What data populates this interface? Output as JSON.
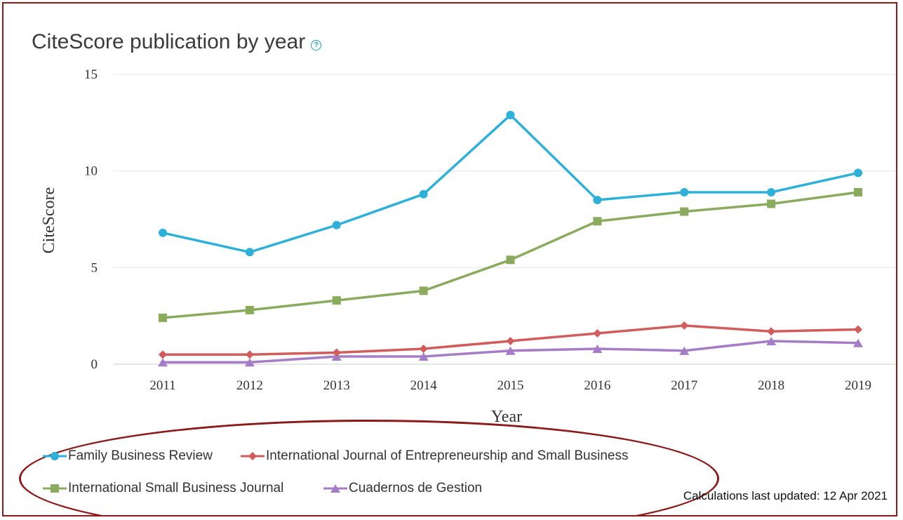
{
  "header": {
    "title": "CiteScore publication by year",
    "help_icon": "question-circle-icon"
  },
  "footer": {
    "updated": "Calculations last updated: 12 Apr 2021"
  },
  "chart_data": {
    "type": "line",
    "xlabel": "Year",
    "ylabel": "CiteScore",
    "ylim": [
      0,
      15
    ],
    "yticks": [
      "0",
      "5",
      "10",
      "15"
    ],
    "categories": [
      "2011",
      "2012",
      "2013",
      "2014",
      "2015",
      "2016",
      "2017",
      "2018",
      "2019"
    ],
    "grid": true,
    "legend_position": "bottom-left",
    "series": [
      {
        "name": "Family Business Review",
        "color": "#2fb0d9",
        "marker": "circle",
        "values": [
          6.8,
          5.8,
          7.2,
          8.8,
          12.9,
          8.5,
          8.9,
          8.9,
          9.9
        ]
      },
      {
        "name": "International Journal of Entrepreneurship and Small Business",
        "color": "#d15c5c",
        "marker": "diamond",
        "values": [
          0.5,
          0.5,
          0.6,
          0.8,
          1.2,
          1.6,
          2.0,
          1.7,
          1.8
        ]
      },
      {
        "name": "International Small Business Journal",
        "color": "#8aab5e",
        "marker": "square",
        "values": [
          2.4,
          2.8,
          3.3,
          3.8,
          5.4,
          7.4,
          7.9,
          8.3,
          8.9
        ]
      },
      {
        "name": "Cuadernos de Gestion",
        "color": "#a57cc6",
        "marker": "triangle",
        "values": [
          0.1,
          0.1,
          0.4,
          0.4,
          0.7,
          0.8,
          0.7,
          1.2,
          1.1
        ]
      }
    ]
  }
}
